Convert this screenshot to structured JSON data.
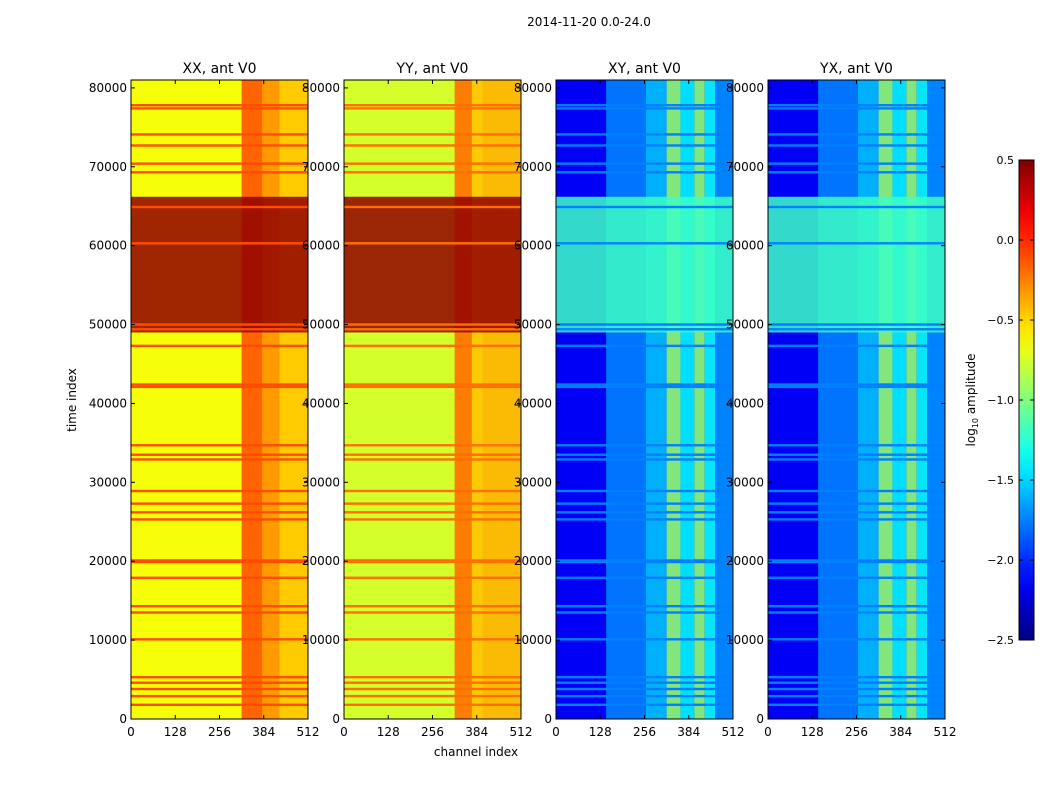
{
  "figure": {
    "suptitle": "2014-11-20 0.0-24.0"
  },
  "chart_data": {
    "type": "heatmap",
    "xlabel": "channel index",
    "ylabel": "time index",
    "xlim": [
      0,
      512
    ],
    "ylim": [
      0,
      81000
    ],
    "xticks": [
      0,
      128,
      256,
      384,
      512
    ],
    "yticks": [
      0,
      10000,
      20000,
      30000,
      40000,
      50000,
      60000,
      70000,
      80000
    ],
    "colormap": "jet",
    "colorbar": {
      "label": "log10 amplitude",
      "label_main": "log",
      "label_sub": "10",
      "label_rest": " amplitude",
      "range": [
        -2.5,
        0.5
      ],
      "ticks": [
        -2.5,
        -2.0,
        -1.5,
        -1.0,
        -0.5,
        0.0,
        0.5
      ],
      "tick_labels": [
        "−2.5",
        "−2.0",
        "−1.5",
        "−1.0",
        "−0.5",
        "0.0",
        "0.5"
      ]
    },
    "panels": [
      {
        "title": "XX, ant V0",
        "base_level": -0.65,
        "band_level": -0.1,
        "gap_level": 0.45,
        "channel_cols": [
          {
            "start": 320,
            "end": 380,
            "level": -0.12
          },
          {
            "start": 380,
            "end": 430,
            "level": -0.3
          },
          {
            "start": 430,
            "end": 512,
            "level": -0.45
          }
        ]
      },
      {
        "title": "YY, ant V0",
        "base_level": -0.75,
        "band_level": -0.2,
        "gap_level": 0.45,
        "channel_cols": [
          {
            "start": 320,
            "end": 370,
            "level": -0.2
          },
          {
            "start": 370,
            "end": 400,
            "level": -0.45
          },
          {
            "start": 400,
            "end": 512,
            "level": -0.4
          }
        ]
      },
      {
        "title": "XY, ant V0",
        "base_level": -2.15,
        "band_level": -1.75,
        "gap_level": -1.2,
        "channel_cols": [
          {
            "start": 145,
            "end": 260,
            "level": -1.75
          },
          {
            "start": 260,
            "end": 320,
            "level": -1.55
          },
          {
            "start": 320,
            "end": 360,
            "level": -0.95
          },
          {
            "start": 360,
            "end": 400,
            "level": -1.4
          },
          {
            "start": 400,
            "end": 430,
            "level": -0.95
          },
          {
            "start": 430,
            "end": 460,
            "level": -1.35
          },
          {
            "start": 460,
            "end": 512,
            "level": -1.7
          }
        ]
      },
      {
        "title": "YX, ant V0",
        "base_level": -2.15,
        "band_level": -1.75,
        "gap_level": -1.2,
        "channel_cols": [
          {
            "start": 145,
            "end": 260,
            "level": -1.75
          },
          {
            "start": 260,
            "end": 320,
            "level": -1.55
          },
          {
            "start": 320,
            "end": 360,
            "level": -0.95
          },
          {
            "start": 360,
            "end": 400,
            "level": -1.4
          },
          {
            "start": 400,
            "end": 430,
            "level": -0.95
          },
          {
            "start": 430,
            "end": 460,
            "level": -1.35
          },
          {
            "start": 460,
            "end": 512,
            "level": -1.7
          }
        ]
      }
    ],
    "gap_time_range": [
      49000,
      66200
    ],
    "flag_rows": [
      1800,
      2900,
      3800,
      4600,
      5300,
      10100,
      13500,
      14300,
      17900,
      19900,
      20100,
      25300,
      26200,
      27300,
      28900,
      32900,
      33500,
      34700,
      42100,
      42400,
      47300,
      49400,
      50000,
      60300,
      64900,
      69300,
      70400,
      72700,
      74100,
      77400,
      77800
    ]
  }
}
